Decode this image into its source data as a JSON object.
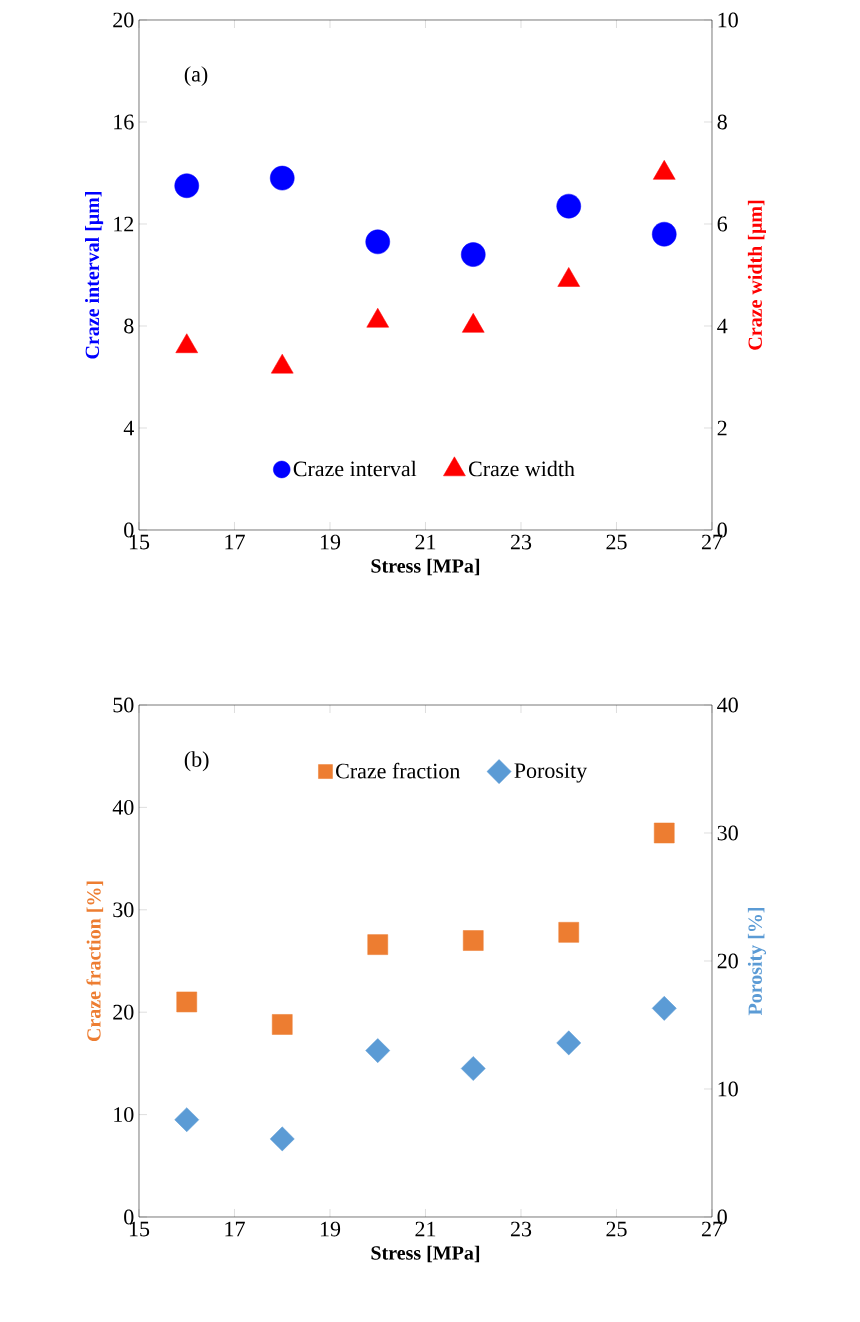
{
  "chart_data": [
    {
      "type": "scatter",
      "annotations": [
        "(a)"
      ],
      "xlabel": "Stress [MPa]",
      "ylabel": "Craze interval [μm]",
      "y2label": "Craze width [μm]",
      "x": [
        16,
        18,
        20,
        22,
        24,
        26
      ],
      "xlim": [
        15,
        27
      ],
      "xticks": [
        15,
        17,
        19,
        21,
        23,
        25,
        27
      ],
      "ylim": [
        0,
        20
      ],
      "yticks": [
        0,
        4,
        8,
        12,
        16,
        20
      ],
      "y2lim": [
        0,
        10
      ],
      "y2ticks": [
        0,
        2,
        4,
        6,
        8,
        10
      ],
      "legend": "bottom",
      "series": [
        {
          "name": "Craze interval",
          "color": "#0000ff",
          "marker": "circle",
          "values": [
            13.5,
            13.8,
            11.3,
            10.8,
            12.7,
            11.6
          ]
        },
        {
          "name": "Craze width",
          "color": "#ff0000",
          "marker": "triangle",
          "axis": "y2",
          "values": [
            3.6,
            3.2,
            4.1,
            4.0,
            4.9,
            7.0
          ]
        }
      ]
    },
    {
      "type": "scatter",
      "annotations": [
        "(b)"
      ],
      "xlabel": "Stress [MPa]",
      "ylabel": "Craze fraction [%]",
      "y2label": "Porosity [%]",
      "x": [
        16,
        18,
        20,
        22,
        24,
        26
      ],
      "xlim": [
        15,
        27
      ],
      "xticks": [
        15,
        17,
        19,
        21,
        23,
        25,
        27
      ],
      "ylim": [
        0,
        50
      ],
      "yticks": [
        0,
        10,
        20,
        30,
        40,
        50
      ],
      "y2lim": [
        0,
        40
      ],
      "y2ticks": [
        0,
        10,
        20,
        30,
        40
      ],
      "legend": "top",
      "series": [
        {
          "name": "Craze fraction",
          "color": "#ed7d31",
          "marker": "square",
          "values": [
            21.0,
            18.8,
            26.6,
            27.0,
            27.8,
            37.5
          ]
        },
        {
          "name": "Porosity",
          "color": "#5b9bd5",
          "marker": "diamond",
          "axis": "y2",
          "values": [
            7.6,
            6.1,
            13.0,
            11.6,
            13.6,
            16.3
          ]
        }
      ]
    }
  ]
}
